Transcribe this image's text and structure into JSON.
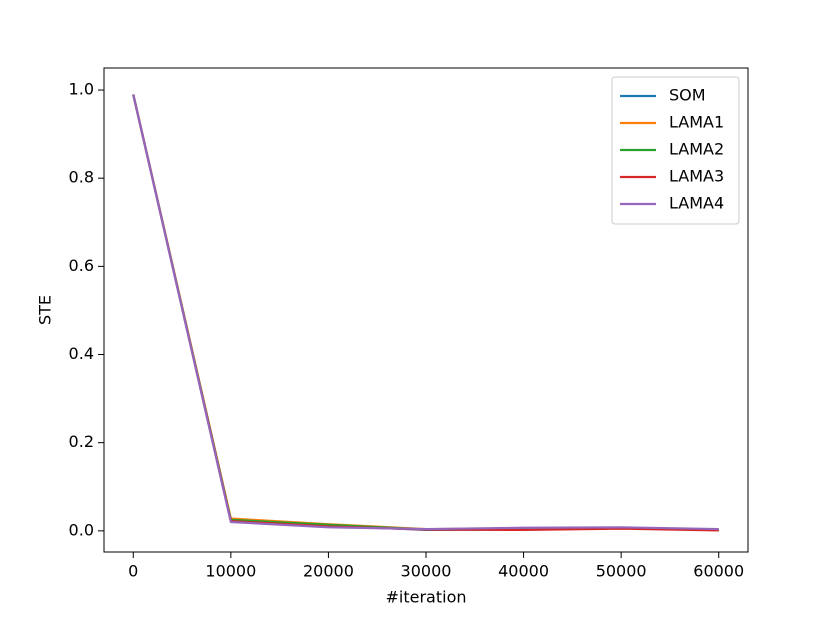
{
  "chart_data": {
    "type": "line",
    "x_label": "#iteration",
    "y_label": "STE",
    "x": [
      0,
      10000,
      20000,
      30000,
      40000,
      50000,
      60000
    ],
    "series": [
      {
        "name": "SOM",
        "color": "#1f77b4",
        "values": [
          0.99,
          0.022,
          0.012,
          0.002,
          0.003,
          0.006,
          0.003
        ]
      },
      {
        "name": "LAMA1",
        "color": "#ff7f0e",
        "values": [
          0.99,
          0.028,
          0.015,
          0.004,
          0.005,
          0.007,
          0.002
        ]
      },
      {
        "name": "LAMA2",
        "color": "#2ca02c",
        "values": [
          0.99,
          0.025,
          0.014,
          0.003,
          0.004,
          0.006,
          0.002
        ]
      },
      {
        "name": "LAMA3",
        "color": "#d62728",
        "values": [
          0.99,
          0.022,
          0.01,
          0.003,
          0.002,
          0.005,
          0.001
        ]
      },
      {
        "name": "LAMA4",
        "color": "#9467bd",
        "values": [
          0.99,
          0.02,
          0.008,
          0.004,
          0.007,
          0.008,
          0.004
        ]
      }
    ],
    "xlim": [
      -3000,
      63000
    ],
    "xticks": [
      0,
      10000,
      20000,
      30000,
      40000,
      50000,
      60000
    ],
    "ylim": [
      -0.048,
      1.05
    ],
    "yticks": [
      {
        "value": 0,
        "label": "0.0"
      },
      0.2,
      0.4,
      0.6,
      0.8,
      {
        "value": 1,
        "label": "1.0"
      }
    ],
    "grid": false,
    "legend": "upper right"
  }
}
